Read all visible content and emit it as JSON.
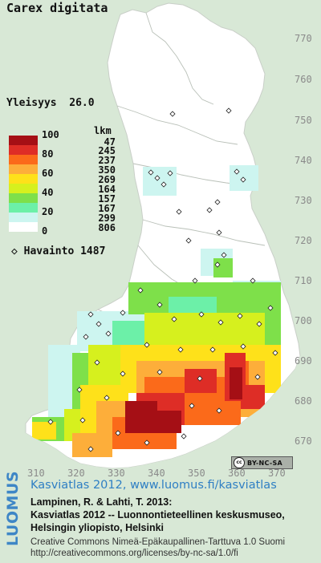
{
  "map": {
    "title": "Carex digitata",
    "yleisyys_label": "Yleisyys",
    "yleisyys_value": "26.0",
    "legend": {
      "header": "lkm",
      "classes": [
        {
          "label": "100",
          "count": "47",
          "color": "#a50f15"
        },
        {
          "label": "80",
          "count": "245",
          "color": "#de2d26"
        },
        {
          "label": "",
          "count": "237",
          "color": "#fb6a1a"
        },
        {
          "label": "60",
          "count": "350",
          "color": "#fdae3a"
        },
        {
          "label": "",
          "count": "269",
          "color": "#fee11a"
        },
        {
          "label": "40",
          "count": "164",
          "color": "#d6f01e"
        },
        {
          "label": "",
          "count": "157",
          "color": "#7ee04a"
        },
        {
          "label": "20",
          "count": "167",
          "color": "#6cf0a8"
        },
        {
          "label": "",
          "count": "299",
          "color": "#cdf5f0"
        },
        {
          "label": "0",
          "count": "806",
          "color": "#ffffff"
        }
      ]
    },
    "havainto_label": "Havainto",
    "havainto_count": "1487",
    "havainto_symbol": "◇",
    "y_ticks": [
      "770",
      "760",
      "750",
      "740",
      "730",
      "720",
      "710",
      "700",
      "690",
      "680",
      "670"
    ],
    "x_ticks": [
      "310",
      "320",
      "330",
      "340",
      "350",
      "360",
      "370"
    ],
    "license_badge": "BY-NC-SA",
    "license_icon": "cc"
  },
  "footer": {
    "brand": "LUOMUS",
    "atlas_title": "Kasviatlas 2012, www.luomus.fi/kasviatlas",
    "citation_line1": "Lampinen, R. & Lahti, T. 2013:",
    "citation_line2": "Kasviatlas 2012 -- Luonnontieteellinen keskusmuseo,",
    "citation_line3": "Helsingin yliopisto, Helsinki",
    "license_line1": "Creative Commons Nimeä-Epäkaupallinen-Tarttuva 1.0 Suomi",
    "license_line2": "http://creativecommons.org/licenses/by-nc-sa/1.0/fi"
  },
  "colors": {
    "background": "#d8e8d6",
    "land": "#ffffff",
    "border_lines": "#9aa29a",
    "tick_text": "#8a8a8a",
    "link_blue": "#2f7fc4"
  }
}
